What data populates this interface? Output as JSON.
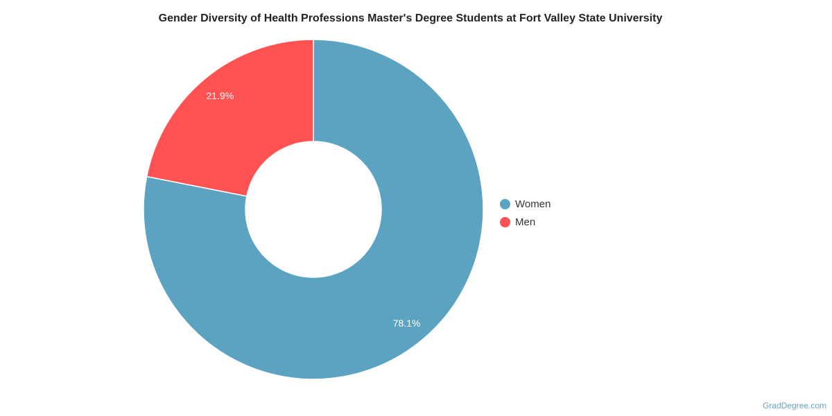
{
  "chart_data": {
    "type": "pie",
    "title": "Gender Diversity of Health Professions Master's Degree Students at Fort Valley State University",
    "donut": true,
    "slices": [
      {
        "name": "Women",
        "value": 78.1,
        "label": "78.1%",
        "color": "#5ba3c0"
      },
      {
        "name": "Men",
        "value": 21.9,
        "label": "21.9%",
        "color": "#ff5252"
      }
    ],
    "legend_placement": "right"
  },
  "watermark": "GradDegree.com"
}
